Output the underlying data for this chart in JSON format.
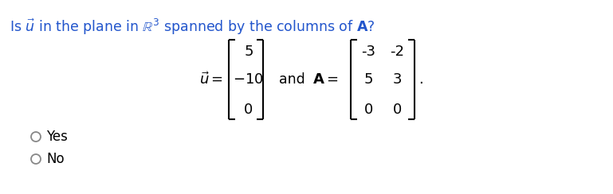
{
  "bg_color": "#ffffff",
  "text_color": "#000000",
  "title_color": "#2255cc",
  "title": "Is $\\vec{u}$ in the plane in $\\mathbb{R}^3$ spanned by the columns of $\\mathbf{A}$?",
  "u_label": "$\\vec{u}=$",
  "u_vals": [
    "$5$",
    "$-10$",
    "$0$"
  ],
  "and_label": "and",
  "A_label": "$\\mathbf{A}=$",
  "A_vals": [
    [
      "-3",
      "-2"
    ],
    [
      "5",
      "3"
    ],
    [
      "0",
      "0"
    ]
  ],
  "period": ".",
  "yes_text": "Yes",
  "no_text": "No",
  "fig_width": 7.69,
  "fig_height": 2.44,
  "dpi": 100
}
